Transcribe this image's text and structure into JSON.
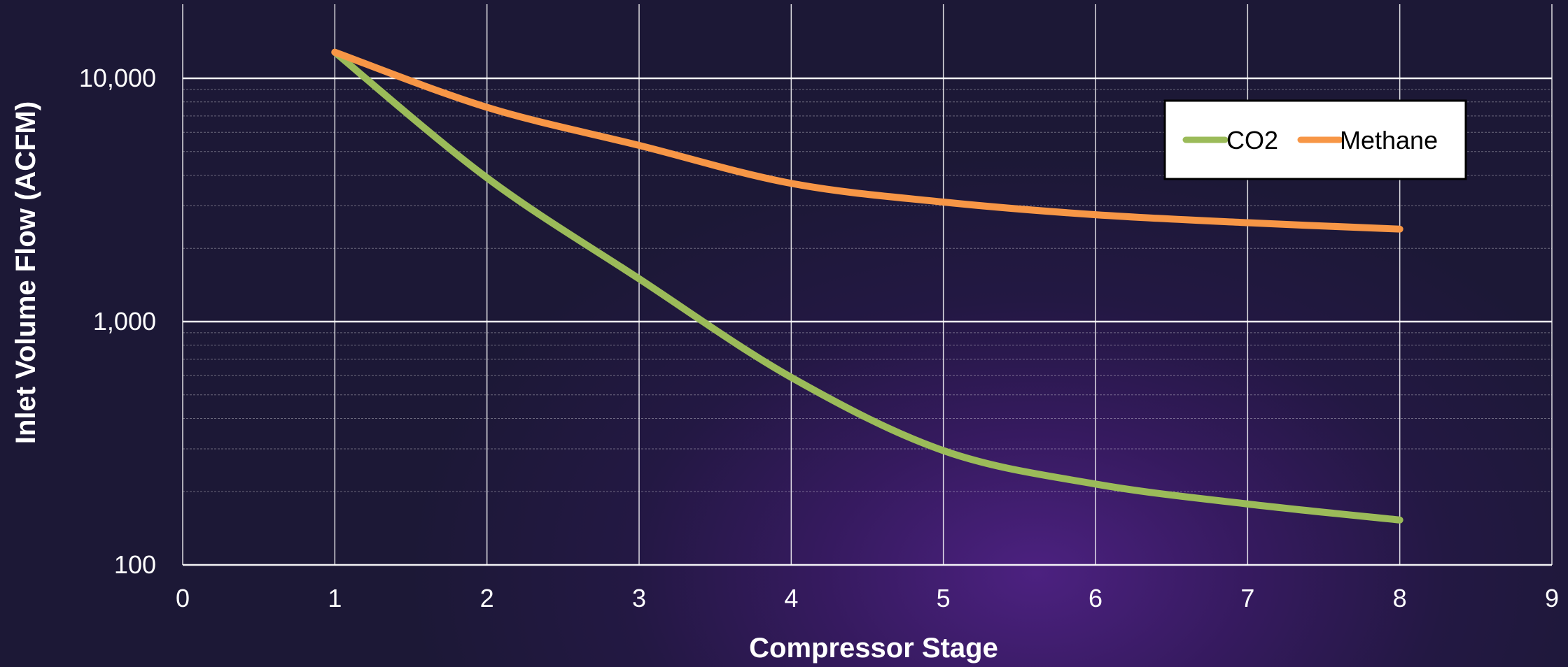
{
  "chart_data": {
    "type": "line",
    "xlabel": "Compressor Stage",
    "ylabel": "Inlet Volume Flow (ACFM)",
    "xlim": [
      0,
      9
    ],
    "ylim": [
      100,
      20000
    ],
    "yscale": "log",
    "x_ticks": [
      0,
      1,
      2,
      3,
      4,
      5,
      6,
      7,
      8,
      9
    ],
    "y_ticks": [
      100,
      1000,
      10000
    ],
    "y_tick_labels": [
      "100",
      "1,000",
      "10,000"
    ],
    "grid": true,
    "legend": "top-right",
    "series": [
      {
        "name": "CO2",
        "color": "#9bbb59",
        "x": [
          1,
          2,
          3,
          4,
          5,
          6,
          7,
          8
        ],
        "y": [
          12800,
          3900,
          1500,
          590,
          295,
          215,
          178,
          153
        ]
      },
      {
        "name": "Methane",
        "color": "#f79646",
        "x": [
          1,
          2,
          3,
          4,
          5,
          6,
          7,
          8
        ],
        "y": [
          12800,
          7600,
          5300,
          3700,
          3100,
          2750,
          2550,
          2400
        ]
      }
    ]
  }
}
